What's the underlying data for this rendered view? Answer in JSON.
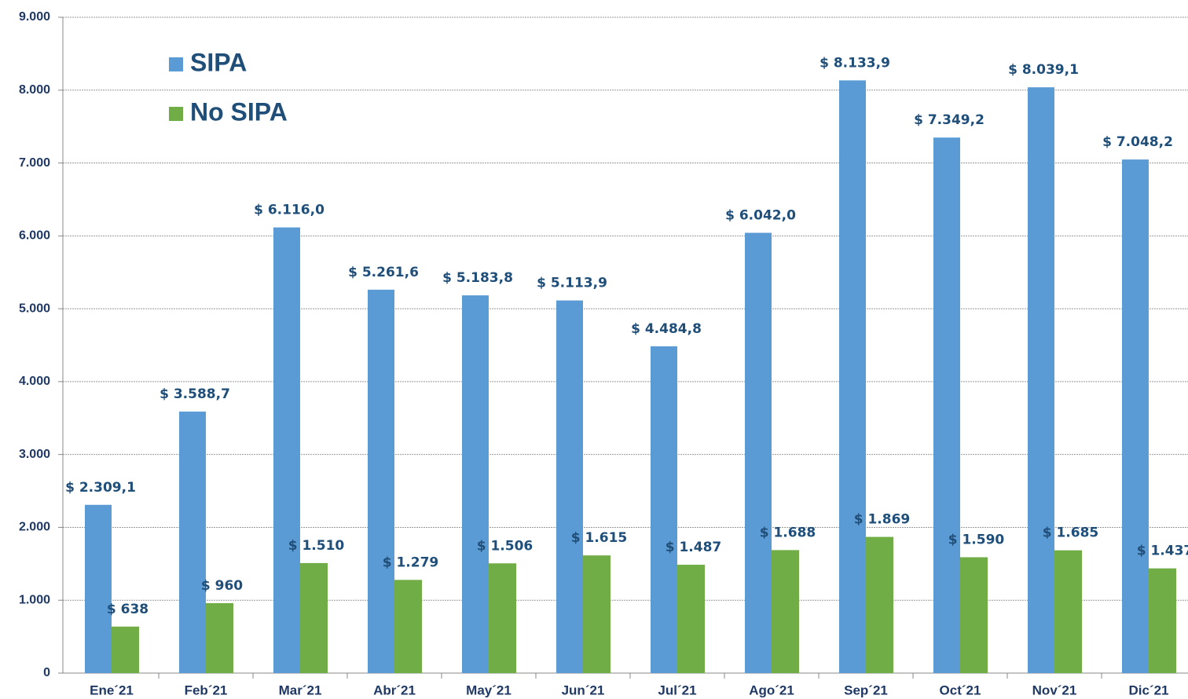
{
  "chart_data": {
    "type": "bar",
    "categories": [
      "Ene´21",
      "Feb´21",
      "Mar´21",
      "Abr´21",
      "May´21",
      "Jun´21",
      "Jul´21",
      "Ago´21",
      "Sep´21",
      "Oct´21",
      "Nov´21",
      "Dic´21"
    ],
    "series": [
      {
        "name": "SIPA",
        "color": "#5b9bd5",
        "values": [
          2309.1,
          3588.7,
          6116.0,
          5261.6,
          5183.8,
          5113.9,
          4484.8,
          6042.0,
          8133.9,
          7349.2,
          8039.1,
          7048.2
        ],
        "value_labels": [
          "$ 2.309,1",
          "$ 3.588,7",
          "$ 6.116,0",
          "$ 5.261,6",
          "$ 5.183,8",
          "$ 5.113,9",
          "$ 4.484,8",
          "$ 6.042,0",
          "$ 8.133,9",
          "$ 7.349,2",
          "$ 8.039,1",
          "$ 7.048,2"
        ]
      },
      {
        "name": "No SIPA",
        "color": "#70ad47",
        "values": [
          638,
          960,
          1510,
          1279,
          1506,
          1615,
          1487,
          1688,
          1869,
          1590,
          1685,
          1437
        ],
        "value_labels": [
          "$ 638",
          "$ 960",
          "$ 1.510",
          "$ 1.279",
          "$ 1.506",
          "$ 1.615",
          "$ 1.487",
          "$ 1.688",
          "$ 1.869",
          "$ 1.590",
          "$ 1.685",
          "$ 1.437"
        ]
      }
    ],
    "ylim": [
      0,
      9000
    ],
    "yticks": [
      0,
      {
        "value": 1000,
        "label": "1.000"
      },
      {
        "value": 2000,
        "label": "2.000"
      },
      {
        "value": 3000,
        "label": "3.000"
      },
      {
        "value": 4000,
        "label": "4.000"
      },
      {
        "value": 5000,
        "label": "5.000"
      },
      {
        "value": 6000,
        "label": "6.000"
      },
      {
        "value": 7000,
        "label": "7.000"
      },
      {
        "value": 8000,
        "label": "8.000"
      },
      {
        "value": 9000,
        "label": "9.000"
      }
    ],
    "grid": true,
    "legend": "upper left"
  }
}
